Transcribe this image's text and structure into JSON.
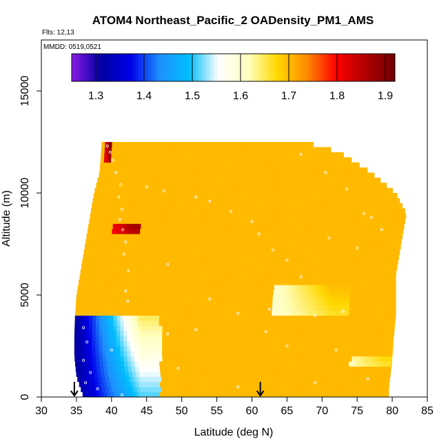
{
  "chart_data": {
    "type": "heatmap",
    "title": "ATOM4 Northeast_Pacific_2 OADensity_PM1_AMS",
    "flights_label": "Flts: 12,13",
    "dates_label": "MMDD: 0519,0521",
    "xlabel": "Latitude (deg N)",
    "ylabel": "Altitude (m)",
    "xlim": [
      30,
      85
    ],
    "ylim": [
      0,
      17500
    ],
    "x_ticks": [
      30,
      35,
      40,
      45,
      50,
      55,
      60,
      65,
      70,
      75,
      80,
      85
    ],
    "y_ticks": [
      0,
      5000,
      10000,
      15000
    ],
    "grid": false,
    "colorbar": {
      "min": 1.25,
      "max": 1.92,
      "ticks": [
        1.3,
        1.4,
        1.5,
        1.6,
        1.7,
        1.8,
        1.9
      ],
      "tick_labels": [
        "1.3",
        "1.4",
        "1.5",
        "1.6",
        "1.7",
        "1.8",
        "1.9"
      ],
      "placement": "top-inset",
      "colors": [
        "#8b1ae6",
        "#0000a0",
        "#0000e8",
        "#1e90ff",
        "#00bfff",
        "#ffffff",
        "#ffffc0",
        "#ffd700",
        "#ff8c00",
        "#ff0000",
        "#b00000",
        "#700000"
      ]
    },
    "background_value": 1.7,
    "data_envelope": {
      "altitudes": [
        0,
        500,
        1000,
        2000,
        3000,
        4000,
        5000,
        6000,
        7000,
        8000,
        9000,
        10000,
        11000,
        12000,
        12500
      ],
      "south_lat": [
        36,
        35.5,
        35,
        34.7,
        34.7,
        34.8,
        35,
        35.5,
        36,
        36.5,
        37,
        37.5,
        38.3,
        38.5,
        38.6
      ],
      "north_lat": [
        79.5,
        79.5,
        79.7,
        80,
        80.2,
        80.5,
        80.5,
        80.5,
        81,
        81.5,
        82,
        80.5,
        77,
        72.5,
        67.5
      ]
    },
    "features": [
      {
        "name": "low southern layer",
        "lat_min": 34.7,
        "lat_max": 47,
        "alt_min": 0,
        "alt_max": 4000,
        "value_min": 1.3,
        "value_max": 1.65
      },
      {
        "name": "plume 8 km",
        "lat_min": 40,
        "lat_max": 44,
        "alt_min": 8000,
        "alt_max": 8500,
        "value_min": 1.8,
        "value_max": 1.88
      },
      {
        "name": "top 12 km",
        "lat_min": 39,
        "lat_max": 40,
        "alt_min": 11500,
        "alt_max": 12500,
        "value_min": 1.8,
        "value_max": 1.9
      },
      {
        "name": "mid layer 4.5 km",
        "lat_min": 63,
        "lat_max": 74,
        "alt_min": 3900,
        "alt_max": 5500,
        "value_min": 1.6,
        "value_max": 1.7
      },
      {
        "name": "low 2 km north",
        "lat_min": 74,
        "lat_max": 80,
        "alt_min": 1500,
        "alt_max": 2000,
        "value_min": 1.62,
        "value_max": 1.68
      }
    ],
    "sample_points": [
      {
        "lat": 39.4,
        "alt": 12300
      },
      {
        "lat": 39.8,
        "alt": 12000
      },
      {
        "lat": 40.2,
        "alt": 11600
      },
      {
        "lat": 40.6,
        "alt": 11000
      },
      {
        "lat": 41.3,
        "alt": 10400
      },
      {
        "lat": 41.0,
        "alt": 9800
      },
      {
        "lat": 41.5,
        "alt": 9200
      },
      {
        "lat": 41.2,
        "alt": 8700
      },
      {
        "lat": 41.6,
        "alt": 8200
      },
      {
        "lat": 42.0,
        "alt": 7600
      },
      {
        "lat": 41.8,
        "alt": 7000
      },
      {
        "lat": 42.4,
        "alt": 6200
      },
      {
        "lat": 42.0,
        "alt": 5200
      },
      {
        "lat": 42.3,
        "alt": 4700
      },
      {
        "lat": 45.0,
        "alt": 10300
      },
      {
        "lat": 47.5,
        "alt": 10100
      },
      {
        "lat": 52.0,
        "alt": 9800
      },
      {
        "lat": 54.0,
        "alt": 9600
      },
      {
        "lat": 57.0,
        "alt": 9100
      },
      {
        "lat": 60.0,
        "alt": 8600
      },
      {
        "lat": 61.0,
        "alt": 8000
      },
      {
        "lat": 63.0,
        "alt": 7200
      },
      {
        "lat": 65.0,
        "alt": 6700
      },
      {
        "lat": 67.0,
        "alt": 11900
      },
      {
        "lat": 70.5,
        "alt": 11000
      },
      {
        "lat": 73.5,
        "alt": 10200
      },
      {
        "lat": 76.0,
        "alt": 9000
      },
      {
        "lat": 77.0,
        "alt": 8800
      },
      {
        "lat": 78.5,
        "alt": 8200
      },
      {
        "lat": 71.0,
        "alt": 7800
      },
      {
        "lat": 75.0,
        "alt": 7300
      },
      {
        "lat": 67.0,
        "alt": 5900
      },
      {
        "lat": 73.0,
        "alt": 4200
      },
      {
        "lat": 69.0,
        "alt": 4000
      },
      {
        "lat": 62.5,
        "alt": 4300
      },
      {
        "lat": 58.0,
        "alt": 4100
      },
      {
        "lat": 52.0,
        "alt": 3300
      },
      {
        "lat": 48.0,
        "alt": 3100
      },
      {
        "lat": 44.0,
        "alt": 2300
      },
      {
        "lat": 46.0,
        "alt": 1800
      },
      {
        "lat": 49.5,
        "alt": 1400
      },
      {
        "lat": 62.0,
        "alt": 3200
      },
      {
        "lat": 65.0,
        "alt": 2500
      },
      {
        "lat": 72.0,
        "alt": 2300
      },
      {
        "lat": 74.5,
        "alt": 1700
      },
      {
        "lat": 76.5,
        "alt": 900
      },
      {
        "lat": 69.0,
        "alt": 700
      },
      {
        "lat": 58.0,
        "alt": 500
      },
      {
        "lat": 54.0,
        "alt": 4800
      },
      {
        "lat": 48.0,
        "alt": 6500
      },
      {
        "lat": 36.0,
        "alt": 3400
      },
      {
        "lat": 36.5,
        "alt": 2700
      },
      {
        "lat": 36.0,
        "alt": 1800
      },
      {
        "lat": 37.0,
        "alt": 1200
      },
      {
        "lat": 36.3,
        "alt": 700
      },
      {
        "lat": 38.0,
        "alt": 400
      },
      {
        "lat": 41.5,
        "alt": 100
      },
      {
        "lat": 40.0,
        "alt": 2300
      }
    ],
    "markers": [
      {
        "lat": 34.7,
        "type": "down-arrow"
      },
      {
        "lat": 61.2,
        "type": "down-arrow"
      }
    ]
  }
}
